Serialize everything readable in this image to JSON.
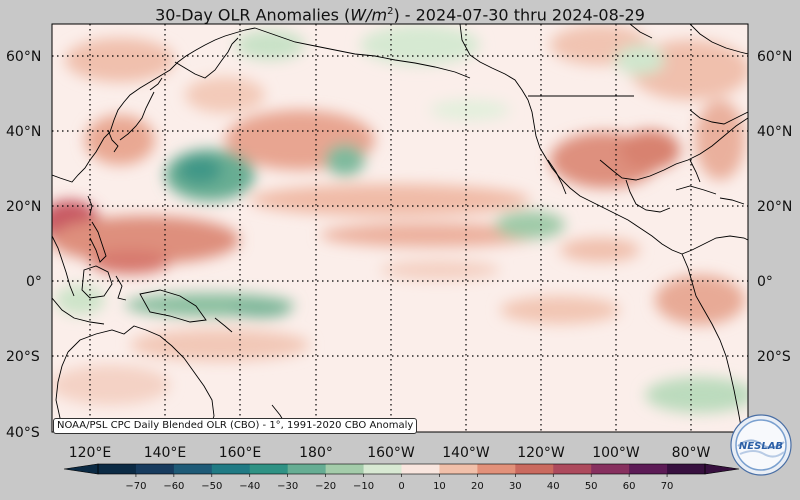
{
  "title": {
    "prefix": "30-Day OLR Anomalies (",
    "unit_base": "W/m",
    "unit_exp": "2",
    "suffix": ") - 2024-07-30 thru 2024-08-29"
  },
  "credit": "NOAA/PSL CPC Daily Blended OLR (CBO) - 1°, 1991-2020 CBO Anomaly",
  "logo_text": "NESLAB",
  "lat_labels": [
    "60°N",
    "40°N",
    "20°N",
    "0°",
    "20°S",
    "40°S"
  ],
  "lon_labels": [
    "120°E",
    "140°E",
    "160°E",
    "180°",
    "160°W",
    "140°W",
    "120°W",
    "100°W",
    "80°W"
  ],
  "colorbar": {
    "ticks": [
      "−70",
      "−60",
      "−50",
      "−40",
      "−30",
      "−20",
      "−10",
      "0",
      "10",
      "20",
      "30",
      "40",
      "50",
      "60",
      "70"
    ],
    "colors": [
      "#0b2a44",
      "#173b5e",
      "#1e5a77",
      "#207a84",
      "#2f9284",
      "#66ad93",
      "#a4ccaa",
      "#d8e9d3",
      "#f9e6df",
      "#f1c0aa",
      "#e2917a",
      "#ca6a5f",
      "#ad4a5d",
      "#87305f",
      "#5c1b56",
      "#37103f"
    ]
  },
  "map_extent": {
    "lon_min": 110,
    "lon_max": 290,
    "lat_min": -40,
    "lat_max": 68
  },
  "colors": {
    "background": "#c8c8c8",
    "ocean_base": "#fbeeea",
    "frame": "#000000"
  }
}
